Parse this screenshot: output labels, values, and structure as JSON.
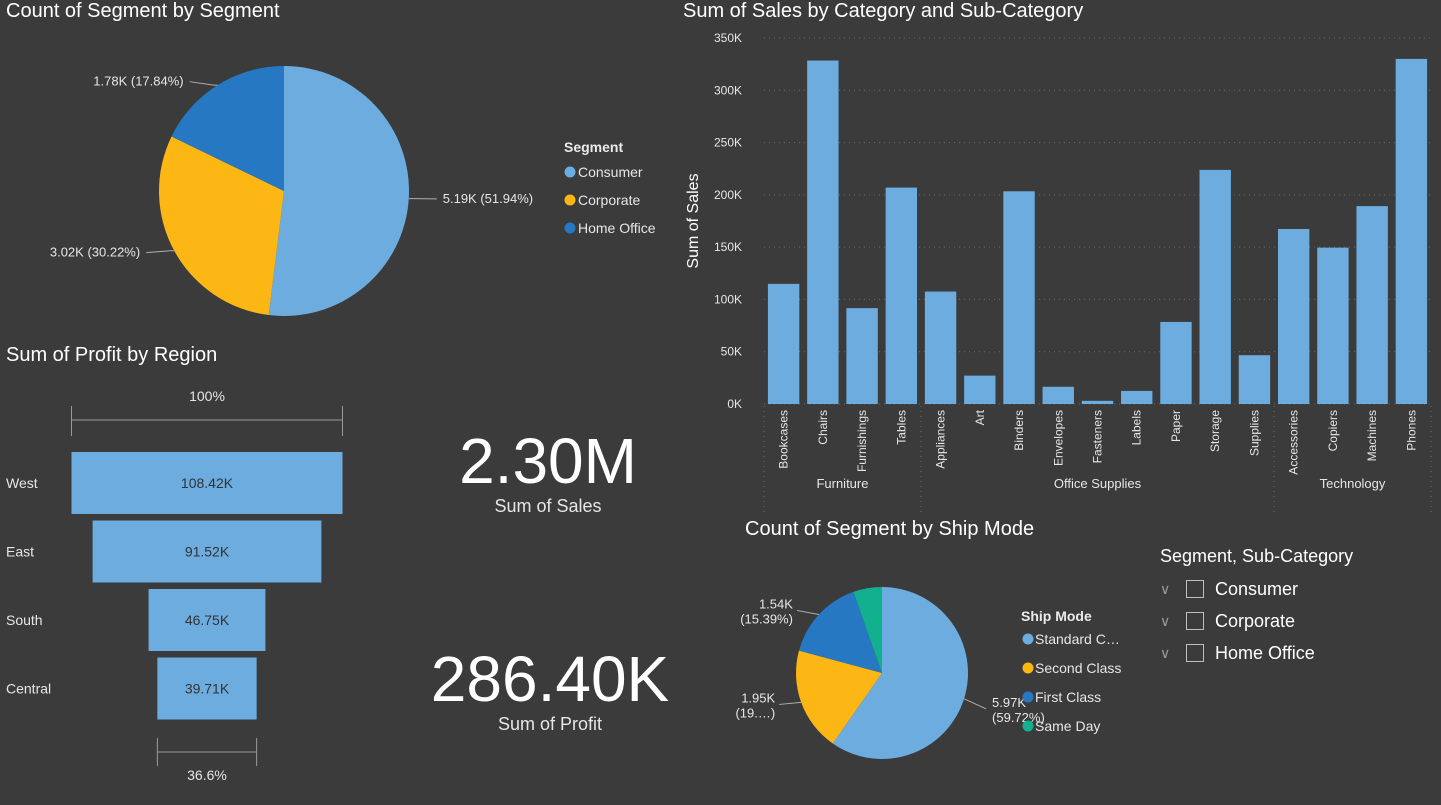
{
  "charts": {
    "segment_pie_title": "Count of Segment by Segment",
    "sales_bar_title": "Sum of Sales by Category and Sub-Category",
    "profit_funnel_title": "Sum of Profit by Region",
    "shipmode_pie_title": "Count of Segment by Ship Mode"
  },
  "cards": {
    "sales_value": "2.30M",
    "sales_label": "Sum of Sales",
    "profit_value": "286.40K",
    "profit_label": "Sum of Profit"
  },
  "slicer": {
    "title": "Segment, Sub-Category",
    "items": [
      "Consumer",
      "Corporate",
      "Home Office"
    ]
  },
  "chart_data": [
    {
      "type": "pie",
      "title": "Count of Segment by Segment",
      "legend_title": "Segment",
      "legend_position": "right",
      "slices": [
        {
          "name": "Consumer",
          "value": 5.19,
          "label": "5.19K (51.94%)",
          "percent": 51.94,
          "color": "#6cacdf"
        },
        {
          "name": "Corporate",
          "value": 3.02,
          "label": "3.02K (30.22%)",
          "percent": 30.22,
          "color": "#fcb714"
        },
        {
          "name": "Home Office",
          "value": 1.78,
          "label": "1.78K (17.84%)",
          "percent": 17.84,
          "color": "#2678c2"
        }
      ]
    },
    {
      "type": "bar",
      "title": "Sum of Sales by Category and Sub-Category",
      "ylabel": "Sum of Sales",
      "ylim": [
        0,
        350000
      ],
      "yticks": [
        "0K",
        "50K",
        "100K",
        "150K",
        "200K",
        "250K",
        "300K",
        "350K"
      ],
      "color": "#6cacdf",
      "groups": [
        {
          "name": "Furniture",
          "categories": [
            "Bookcases",
            "Chairs",
            "Furnishings",
            "Tables"
          ],
          "values": [
            114880,
            328450,
            91705,
            206966
          ]
        },
        {
          "name": "Office Supplies",
          "categories": [
            "Appliances",
            "Art",
            "Binders",
            "Envelopes",
            "Fasteners",
            "Labels",
            "Paper",
            "Storage",
            "Supplies"
          ],
          "values": [
            107532,
            27119,
            203413,
            16476,
            3024,
            12486,
            78479,
            223844,
            46674
          ]
        },
        {
          "name": "Technology",
          "categories": [
            "Accessories",
            "Copiers",
            "Machines",
            "Phones"
          ],
          "values": [
            167380,
            149528,
            189239,
            330007
          ]
        }
      ]
    },
    {
      "type": "funnel",
      "title": "Sum of Profit by Region",
      "top_label": "100%",
      "bottom_label": "36.6%",
      "categories": [
        "West",
        "East",
        "South",
        "Central"
      ],
      "values": [
        108.42,
        91.52,
        46.75,
        39.71
      ],
      "value_labels": [
        "108.42K",
        "91.52K",
        "46.75K",
        "39.71K"
      ],
      "color": "#6cacdf"
    },
    {
      "type": "pie",
      "title": "Count of Segment by Ship Mode",
      "legend_title": "Ship Mode",
      "legend_position": "right",
      "slices": [
        {
          "name": "Standard C…",
          "value": 5.97,
          "label1": "5.97K",
          "label2": "(59.72%)",
          "percent": 59.72,
          "color": "#6cacdf"
        },
        {
          "name": "Second Class",
          "value": 1.95,
          "label1": "1.95K",
          "label2": "(19.…)",
          "percent": 19.46,
          "color": "#fcb714"
        },
        {
          "name": "First Class",
          "value": 1.54,
          "label1": "1.54K",
          "label2": "(15.39%)",
          "percent": 15.39,
          "color": "#2678c2"
        },
        {
          "name": "Same Day",
          "value": 0.54,
          "label1": "",
          "label2": "",
          "percent": 5.43,
          "color": "#12b08f"
        }
      ]
    }
  ]
}
